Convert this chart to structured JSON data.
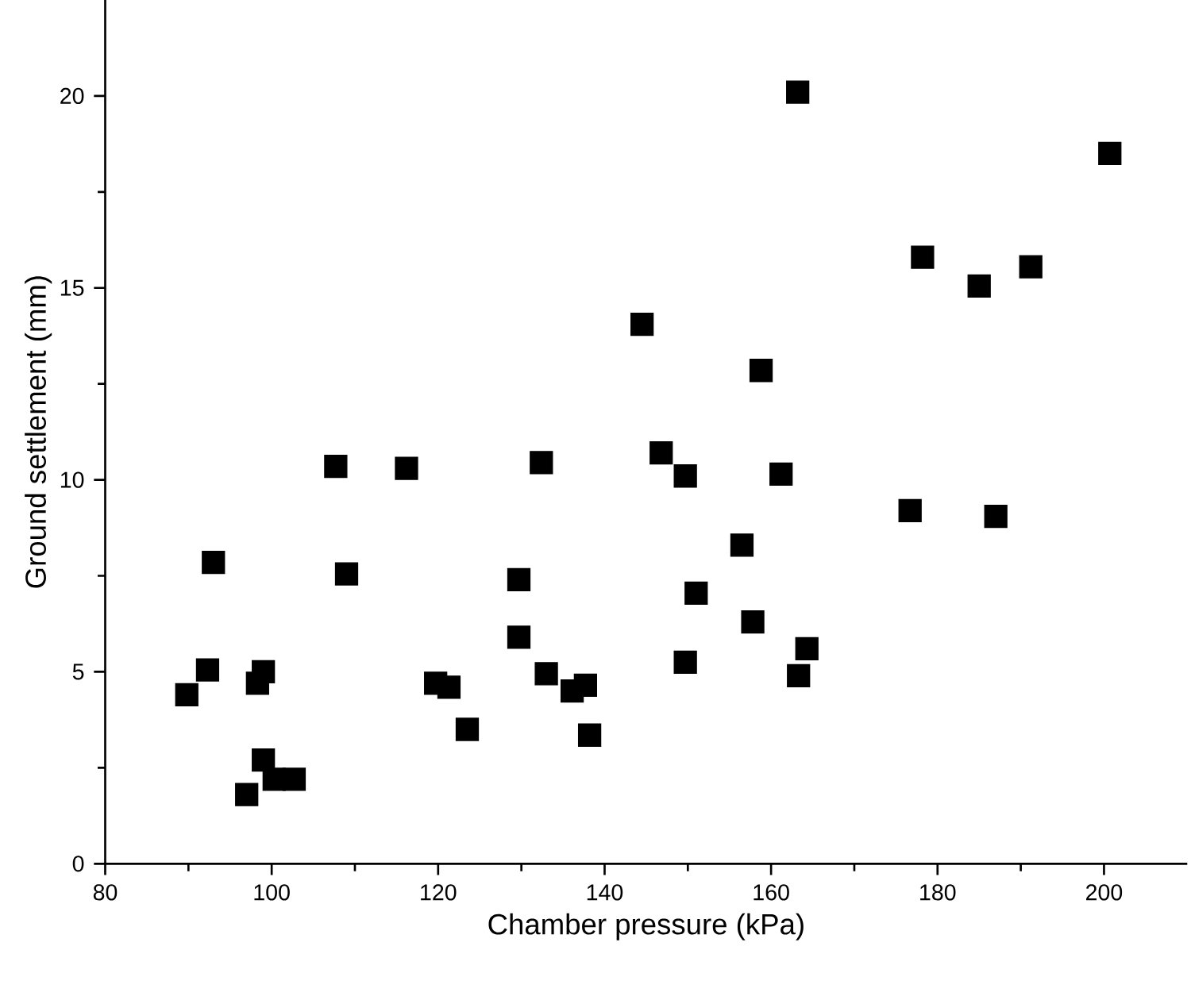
{
  "chart_data": {
    "type": "scatter",
    "xlabel": "Chamber pressure (kPa)",
    "ylabel": "Ground settlement (mm)",
    "xlim": [
      80,
      210
    ],
    "ylim": [
      0,
      22.5
    ],
    "xticks": [
      80,
      100,
      120,
      140,
      160,
      180,
      200
    ],
    "yticks": [
      0,
      5,
      10,
      15,
      20
    ],
    "marker": "square",
    "grid": false,
    "series": [
      {
        "color": "#000000",
        "x": [
          89.8,
          92.3,
          93,
          97,
          98.3,
          99,
          99,
          100.3,
          102.7,
          107.7,
          109,
          116.2,
          119.7,
          121.3,
          123.5,
          129.7,
          129.7,
          132.4,
          133,
          136.1,
          137.7,
          138.2,
          144.5,
          146.8,
          149.7,
          149.7,
          151,
          156.5,
          157.8,
          158.8,
          161.2,
          163.2,
          163.3,
          164.3,
          176.7,
          178.2,
          185,
          187,
          191.2,
          200.7
        ],
        "values": [
          4.4,
          5.05,
          7.85,
          1.8,
          4.7,
          2.7,
          5,
          2.2,
          2.2,
          10.35,
          7.55,
          10.3,
          4.7,
          4.6,
          3.5,
          7.4,
          5.9,
          10.45,
          4.95,
          4.5,
          4.65,
          3.35,
          14.05,
          10.7,
          10.1,
          5.25,
          7.05,
          8.3,
          6.3,
          12.85,
          10.15,
          20.1,
          4.9,
          5.6,
          9.2,
          15.8,
          15.05,
          9.05,
          15.55,
          18.5
        ]
      }
    ]
  }
}
